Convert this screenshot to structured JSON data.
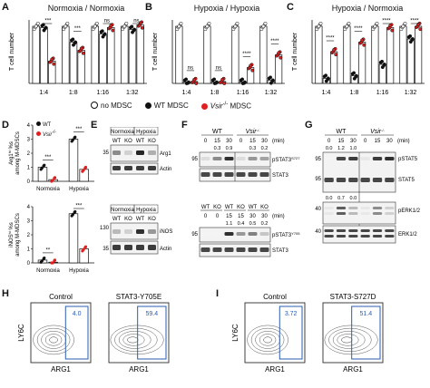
{
  "colors": {
    "wt": "#111111",
    "ko": "#e02020",
    "nomdsc": "#ffffff",
    "box": "#2a5db0"
  },
  "panels": {
    "A": {
      "label": "A",
      "title": "Normoxia / Normoxia"
    },
    "B": {
      "label": "B",
      "title": "Hypoxia / Hypoxia"
    },
    "C": {
      "label": "C",
      "title": "Hypoxia / Normoxia"
    },
    "D": {
      "label": "D"
    },
    "E": {
      "label": "E"
    },
    "F": {
      "label": "F"
    },
    "G": {
      "label": "G"
    },
    "H": {
      "label": "H"
    },
    "I": {
      "label": "I"
    }
  },
  "legend": {
    "no_mdsc": "no MDSC",
    "wt_mdsc": "WT MDSC",
    "ko_mdsc_prefix": "Vsir",
    "ko_mdsc_sup": "-/-",
    "ko_mdsc_suffix": " MDSC"
  },
  "chart_data": [
    {
      "type": "bar",
      "panel": "A",
      "title": "Normoxia / Normoxia",
      "categories": [
        "1:4",
        "1:8",
        "1:16",
        "1:32"
      ],
      "ylabel": "T cell number",
      "ylim": [
        0,
        1
      ],
      "ticks": false,
      "series": [
        {
          "name": "no MDSC",
          "values": [
            0.9,
            0.9,
            0.9,
            0.9
          ]
        },
        {
          "name": "WT MDSC",
          "values": [
            0.88,
            0.65,
            0.78,
            0.85
          ]
        },
        {
          "name": "Vsir-/- MDSC",
          "values": [
            0.35,
            0.52,
            0.88,
            0.92
          ]
        }
      ],
      "sig": [
        "***",
        "***",
        "ns",
        "ns"
      ]
    },
    {
      "type": "bar",
      "panel": "B",
      "title": "Hypoxia / Hypoxia",
      "categories": [
        "1:4",
        "1:8",
        "1:16",
        "1:32"
      ],
      "ylabel": "T cell number",
      "ylim": [
        0,
        1
      ],
      "ticks": false,
      "series": [
        {
          "name": "no MDSC",
          "values": [
            0.9,
            0.9,
            0.9,
            0.9
          ]
        },
        {
          "name": "WT MDSC",
          "values": [
            0.02,
            0.02,
            0.02,
            0.05
          ]
        },
        {
          "name": "Vsir-/- MDSC",
          "values": [
            0.03,
            0.03,
            0.25,
            0.45
          ]
        }
      ],
      "sig": [
        "ns",
        "ns",
        "****",
        "****"
      ]
    },
    {
      "type": "bar",
      "panel": "C",
      "title": "Hypoxia / Normoxia",
      "categories": [
        "1:4",
        "1:8",
        "1:16",
        "1:32"
      ],
      "ylabel": "T cell number",
      "ylim": [
        0,
        1
      ],
      "ticks": false,
      "series": [
        {
          "name": "no MDSC",
          "values": [
            0.9,
            0.9,
            0.9,
            0.9
          ]
        },
        {
          "name": "WT MDSC",
          "values": [
            0.08,
            0.12,
            0.3,
            0.7
          ]
        },
        {
          "name": "Vsir-/- MDSC",
          "values": [
            0.5,
            0.65,
            0.88,
            0.9
          ]
        }
      ],
      "sig": [
        "****",
        "****",
        "****",
        "****"
      ]
    },
    {
      "type": "bar",
      "panel": "D-top",
      "categories": [
        "Normoxia",
        "Hypoxia"
      ],
      "ylabel_line1": "Arg1",
      "ylabel_sup": "hi",
      "ylabel_suffix": " %s",
      "ylabel_line2": "among M-MDSCs",
      "ylim": [
        0,
        4
      ],
      "yticks": [
        0,
        1,
        2,
        3,
        4
      ],
      "series": [
        {
          "name": "WT",
          "values": [
            1.0,
            3.0
          ]
        },
        {
          "name": "Vsir-/-",
          "values": [
            0.12,
            0.85
          ]
        }
      ],
      "sig": [
        "***",
        "***"
      ]
    },
    {
      "type": "bar",
      "panel": "D-bottom",
      "categories": [
        "Normoxia",
        "Hypoxia"
      ],
      "ylabel_line1": "iNOS",
      "ylabel_sup": "hi",
      "ylabel_suffix": " %s",
      "ylabel_line2": "among M-MDSCs",
      "ylim": [
        0,
        4
      ],
      "yticks": [
        0,
        1,
        2,
        3,
        4
      ],
      "series": [
        {
          "name": "WT",
          "values": [
            0.2,
            3.5
          ]
        },
        {
          "name": "Vsir-/-",
          "values": [
            0.05,
            1.0
          ]
        }
      ],
      "sig": [
        "**",
        "***"
      ]
    }
  ],
  "d_legend": {
    "wt": "WT",
    "ko_prefix": "Vsir",
    "ko_sup": "-/-"
  },
  "blotE": {
    "top": {
      "conds": [
        "Normoxia",
        "Hypoxia"
      ],
      "genos": [
        "WT",
        "KO",
        "WT",
        "KO"
      ],
      "mw": "35",
      "rows": [
        "Arg1",
        "Actin"
      ]
    },
    "bottom": {
      "conds": [
        "Normoxia",
        "Hypoxia"
      ],
      "genos": [
        "WT",
        "KO",
        "WT",
        "KO"
      ],
      "mw1": "130",
      "mw2": "35",
      "rows": [
        "iNOS",
        "Actin"
      ]
    }
  },
  "blotF": {
    "top": {
      "genos": [
        "WT",
        "Vsir"
      ],
      "ko_sup": "-/-",
      "times": [
        "0",
        "15",
        "30",
        "0",
        "15",
        "30"
      ],
      "unit": "(min)",
      "quant": [
        "0.3",
        "0.9",
        "0.3",
        "0.2"
      ],
      "mw": "95",
      "rows": [
        "pSTAT3",
        "STAT3"
      ],
      "row1_sup": "S727"
    },
    "bottom": {
      "genos": [
        "WT",
        "KO",
        "WT",
        "KO",
        "WT",
        "KO"
      ],
      "times": [
        "0",
        "0",
        "15",
        "15",
        "30",
        "30"
      ],
      "unit": "(min)",
      "quant": [
        "1.1",
        "0.4",
        "0.5",
        "0.2"
      ],
      "mw": "95",
      "rows": [
        "pSTAT3",
        "STAT3"
      ],
      "row1_sup": "Y705"
    }
  },
  "blotG": {
    "genos": [
      "WT",
      "Vsir"
    ],
    "ko_sup": "-/-",
    "times": [
      "0",
      "15",
      "30",
      "0",
      "15",
      "30"
    ],
    "unit": "(min)",
    "quant1": [
      "0.0",
      "1.2",
      "1.0"
    ],
    "quant2": [
      "0.0",
      "0.7",
      "0.0"
    ],
    "mw": [
      "95",
      "95",
      "40",
      "40"
    ],
    "rows": [
      "pSTAT5",
      "STAT5",
      "pERK1/2",
      "ERK1/2"
    ]
  },
  "flowH": {
    "plots": [
      {
        "title": "Control",
        "value": "4.0"
      },
      {
        "title": "STAT3-Y705E",
        "value": "59.4"
      }
    ],
    "xlabel": "ARG1",
    "ylabel": "LY6C"
  },
  "flowI": {
    "plots": [
      {
        "title": "Control",
        "value": "3.72"
      },
      {
        "title": "STAT3-S727D",
        "value": "51.4"
      }
    ],
    "xlabel": "ARG1",
    "ylabel": "LY6C"
  }
}
